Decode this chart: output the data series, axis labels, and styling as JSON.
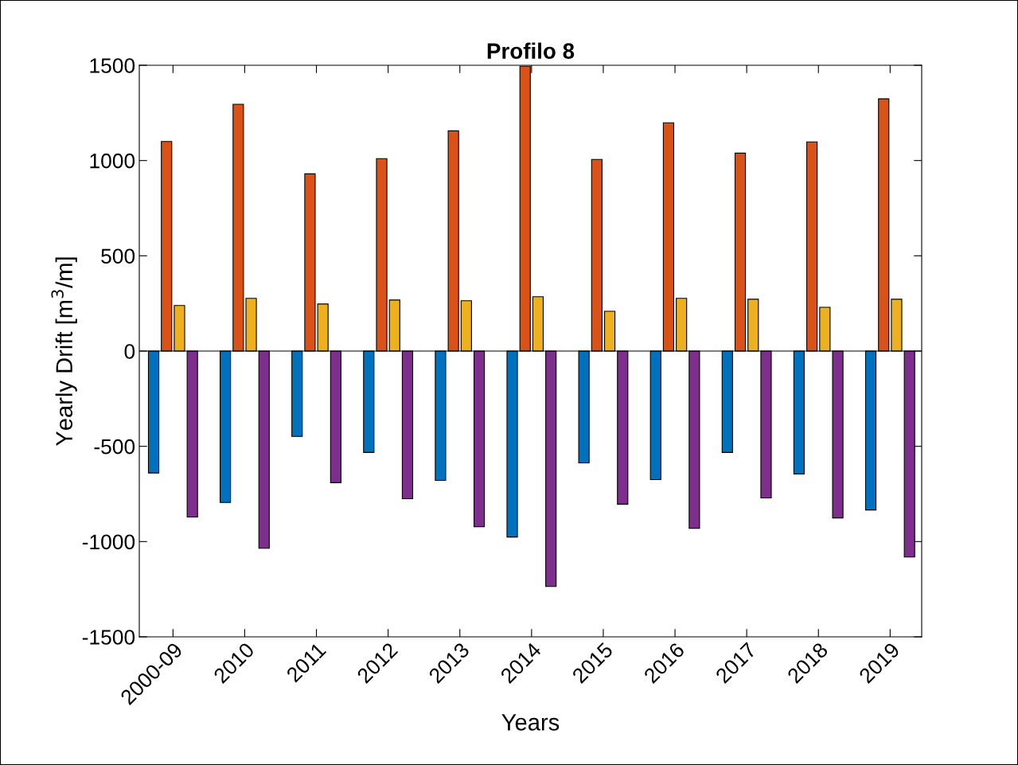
{
  "chart_data": {
    "type": "bar",
    "title": "Profilo 8",
    "xlabel": "Years",
    "ylabel": "Yearly Drift [m$^{3}$/m]",
    "categories": [
      "2000-09",
      "2010",
      "2011",
      "2012",
      "2013",
      "2014",
      "2015",
      "2016",
      "2017",
      "2018",
      "2019"
    ],
    "series": [
      {
        "color": "#0072bd",
        "values": [
          -640,
          -795,
          -448,
          -532,
          -679,
          -976,
          -587,
          -675,
          -532,
          -645,
          -834
        ]
      },
      {
        "color": "#d95319",
        "values": [
          1100,
          1295,
          930,
          1010,
          1156,
          1495,
          1006,
          1198,
          1039,
          1098,
          1324
        ]
      },
      {
        "color": "#edb120",
        "values": [
          239,
          277,
          247,
          268,
          264,
          285,
          209,
          277,
          272,
          230,
          272
        ]
      },
      {
        "color": "#7e2f8e",
        "values": [
          -871,
          -1035,
          -691,
          -775,
          -922,
          -1236,
          -804,
          -930,
          -771,
          -876,
          -1081
        ]
      }
    ],
    "ylim": [
      -1500,
      1500
    ],
    "yticks": [
      -1500,
      -1000,
      -500,
      0,
      500,
      1000,
      1500
    ],
    "ref_lines": [
      {
        "axis": "y",
        "value": 0,
        "color": "#000000"
      }
    ],
    "grid": false,
    "legend": false
  }
}
